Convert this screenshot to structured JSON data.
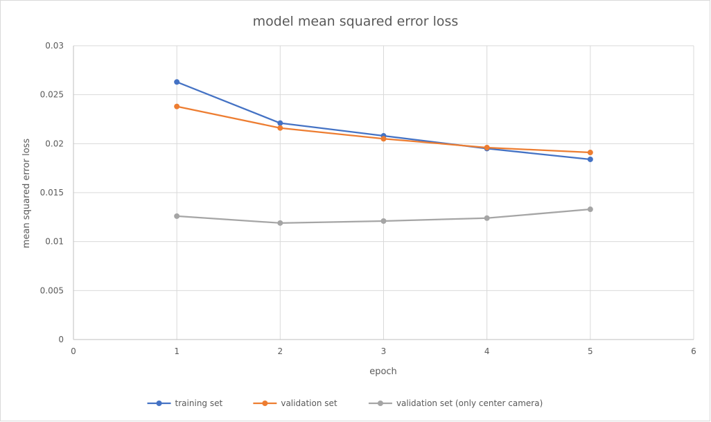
{
  "chart_data": {
    "type": "line",
    "title": "model mean squared error loss",
    "xlabel": "epoch",
    "ylabel": "mean squared error loss",
    "xlim": [
      0,
      6
    ],
    "ylim": [
      0,
      0.03
    ],
    "x_ticks": [
      "0",
      "1",
      "2",
      "3",
      "4",
      "5",
      "6"
    ],
    "y_ticks": [
      "0",
      "0.005",
      "0.01",
      "0.015",
      "0.02",
      "0.025",
      "0.03"
    ],
    "grid": true,
    "legend_position": "bottom",
    "x": [
      1,
      2,
      3,
      4,
      5
    ],
    "series": [
      {
        "name": "training set",
        "color": "#4472c4",
        "values": [
          0.0263,
          0.0221,
          0.0208,
          0.0195,
          0.0184
        ]
      },
      {
        "name": "validation set",
        "color": "#ed7d31",
        "values": [
          0.0238,
          0.0216,
          0.0205,
          0.0196,
          0.0191
        ]
      },
      {
        "name": "validation set (only center camera)",
        "color": "#a5a5a5",
        "values": [
          0.0126,
          0.0119,
          0.0121,
          0.0124,
          0.0133
        ]
      }
    ]
  }
}
